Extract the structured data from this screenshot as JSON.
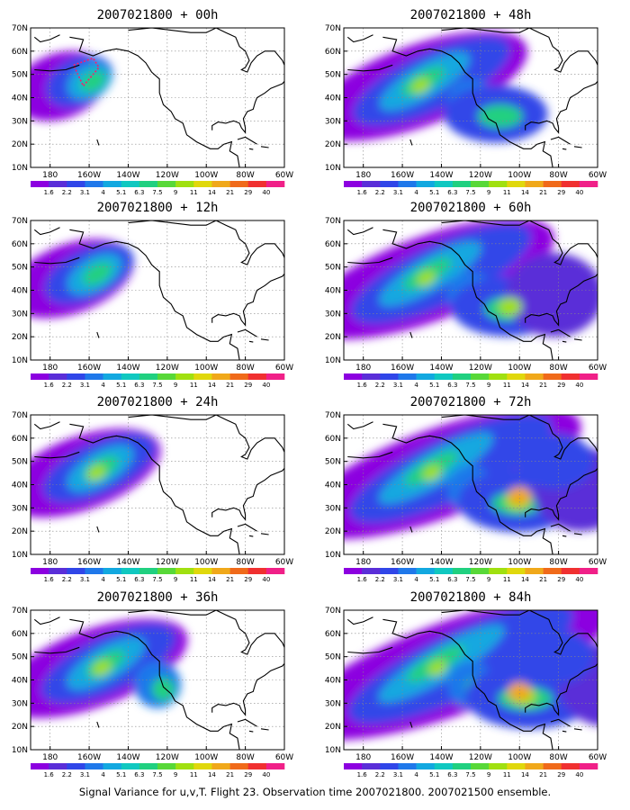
{
  "panels": [
    {
      "title": "2007021800 + 00h",
      "forecast_hour": 0
    },
    {
      "title": "2007021800 + 48h",
      "forecast_hour": 48
    },
    {
      "title": "2007021800 + 12h",
      "forecast_hour": 12
    },
    {
      "title": "2007021800 + 60h",
      "forecast_hour": 60
    },
    {
      "title": "2007021800 + 24h",
      "forecast_hour": 24
    },
    {
      "title": "2007021800 + 72h",
      "forecast_hour": 72
    },
    {
      "title": "2007021800 + 36h",
      "forecast_hour": 36
    },
    {
      "title": "2007021800 + 84h",
      "forecast_hour": 84
    }
  ],
  "axes": {
    "lon_labels": [
      "180",
      "160W",
      "140W",
      "120W",
      "100W",
      "80W",
      "60W"
    ],
    "lat_labels": [
      "10N",
      "20N",
      "30N",
      "40N",
      "50N",
      "60N",
      "70N"
    ],
    "lon_range": [
      -190,
      -60
    ],
    "lat_range": [
      10,
      70
    ]
  },
  "colorbar": {
    "labels": [
      "1.6",
      "2.2",
      "3.1",
      "4",
      "5.1",
      "6.3",
      "7.5",
      "9",
      "11",
      "14",
      "21",
      "29",
      "40"
    ],
    "colors": [
      "#8c00e0",
      "#5a2ed8",
      "#3046e8",
      "#1f78ea",
      "#12a8e0",
      "#10c8c0",
      "#20d080",
      "#58d838",
      "#a0e010",
      "#e0d80c",
      "#f0a81a",
      "#f06a1a",
      "#f03030",
      "#f02088"
    ]
  },
  "caption": "Signal Variance for u,v,T. Flight 23. Observation time 2007021800. 2007021500 ensemble."
}
